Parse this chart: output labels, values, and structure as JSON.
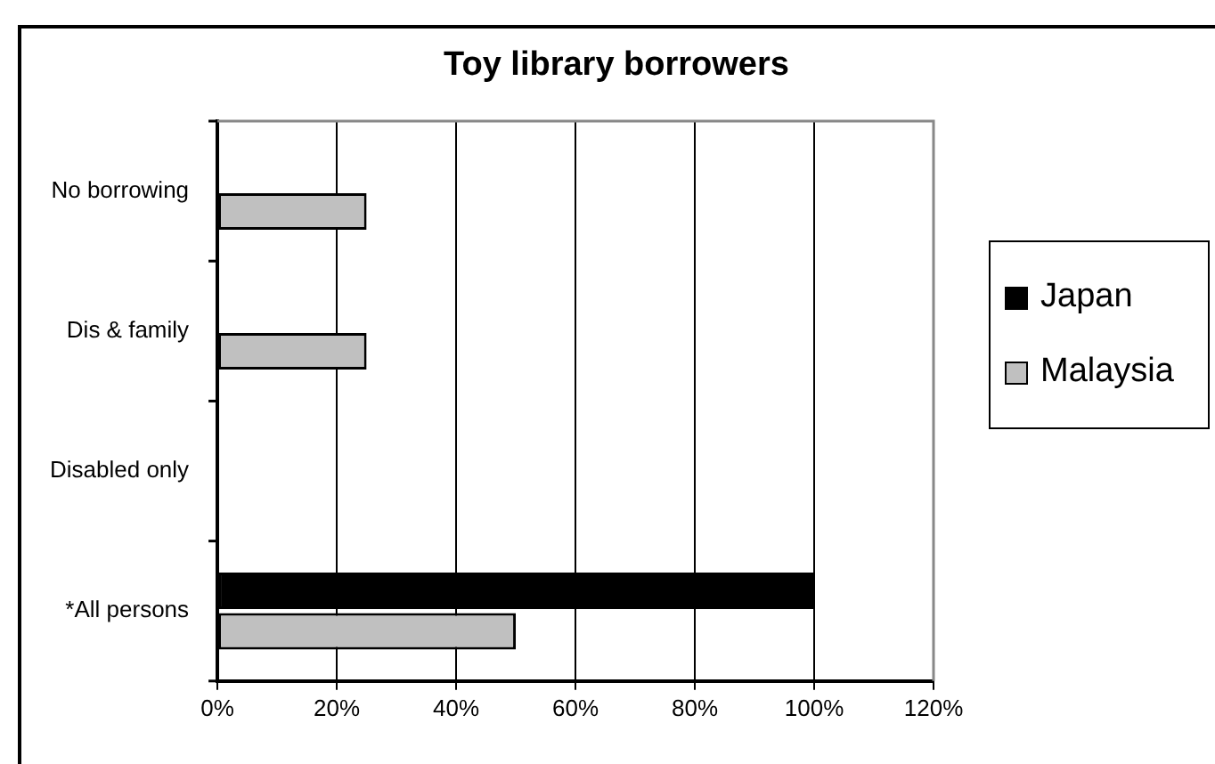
{
  "chart_data": {
    "type": "bar",
    "orientation": "horizontal",
    "title": "Toy library borrowers",
    "categories": [
      "No borrowing",
      "Dis & family",
      "Disabled only",
      "*All persons"
    ],
    "series": [
      {
        "name": "Japan",
        "color": "#000000",
        "values": [
          0,
          0,
          0,
          100
        ]
      },
      {
        "name": "Malaysia",
        "color": "#c0c0c0",
        "values": [
          25,
          25,
          0,
          50
        ]
      }
    ],
    "xlim": [
      0,
      120
    ],
    "xticks": [
      {
        "value": 0,
        "label": "0%"
      },
      {
        "value": 20,
        "label": "20%"
      },
      {
        "value": 40,
        "label": "40%"
      },
      {
        "value": 60,
        "label": "60%"
      },
      {
        "value": 80,
        "label": "80%"
      },
      {
        "value": 100,
        "label": "100%"
      },
      {
        "value": 120,
        "label": "120%"
      }
    ],
    "grid": "x",
    "legend": "right"
  }
}
